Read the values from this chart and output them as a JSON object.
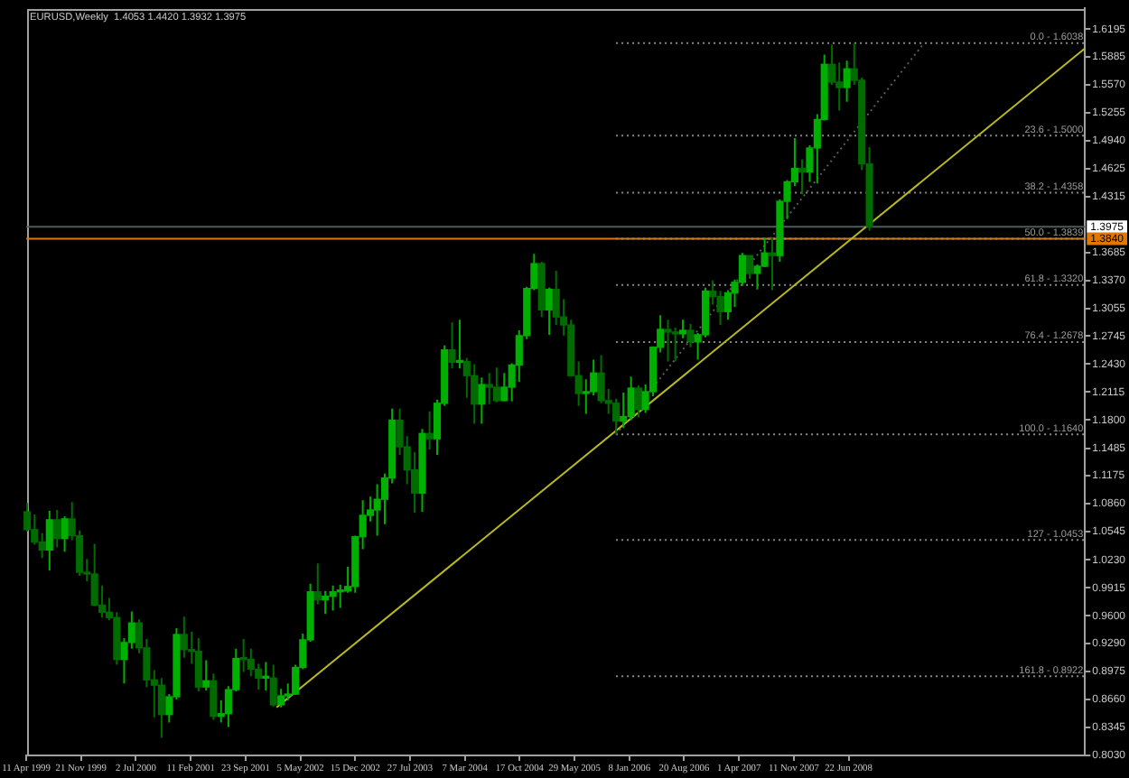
{
  "chart_data": {
    "type": "candlestick",
    "title": "EURUSD,Weekly  1.4053 1.4420 1.3932 1.3975",
    "x": [
      "1999-04-15",
      "1999-05-15",
      "1999-06-15",
      "1999-07-15",
      "1999-08-15",
      "1999-09-15",
      "1999-10-15",
      "1999-11-15",
      "1999-12-15",
      "2000-01-15",
      "2000-02-15",
      "2000-03-15",
      "2000-04-15",
      "2000-05-15",
      "2000-06-15",
      "2000-07-15",
      "2000-08-15",
      "2000-09-15",
      "2000-10-15",
      "2000-11-15",
      "2000-12-15",
      "2001-01-15",
      "2001-02-15",
      "2001-03-15",
      "2001-04-15",
      "2001-05-15",
      "2001-06-15",
      "2001-07-15",
      "2001-08-15",
      "2001-09-15",
      "2001-10-15",
      "2001-11-15",
      "2001-12-15",
      "2002-01-15",
      "2002-02-15",
      "2002-03-15",
      "2002-04-15",
      "2002-05-15",
      "2002-06-15",
      "2002-07-15",
      "2002-08-15",
      "2002-09-15",
      "2002-10-15",
      "2002-11-15",
      "2002-12-15",
      "2003-01-15",
      "2003-02-15",
      "2003-03-15",
      "2003-04-15",
      "2003-05-15",
      "2003-06-15",
      "2003-07-15",
      "2003-08-15",
      "2003-09-15",
      "2003-10-15",
      "2003-11-15",
      "2003-12-15",
      "2004-01-15",
      "2004-02-15",
      "2004-03-15",
      "2004-04-15",
      "2004-05-15",
      "2004-06-15",
      "2004-07-15",
      "2004-08-15",
      "2004-09-15",
      "2004-10-15",
      "2004-11-15",
      "2004-12-15",
      "2005-01-15",
      "2005-02-15",
      "2005-03-15",
      "2005-04-15",
      "2005-05-15",
      "2005-06-15",
      "2005-07-15",
      "2005-08-15",
      "2005-09-15",
      "2005-10-15",
      "2005-11-15",
      "2005-12-15",
      "2006-01-15",
      "2006-02-15",
      "2006-03-15",
      "2006-04-15",
      "2006-05-15",
      "2006-06-15",
      "2006-07-15",
      "2006-08-15",
      "2006-09-15",
      "2006-10-15",
      "2006-11-15",
      "2006-12-15",
      "2007-01-15",
      "2007-02-15",
      "2007-03-15",
      "2007-04-15",
      "2007-05-15",
      "2007-06-15",
      "2007-07-15",
      "2007-08-15",
      "2007-09-15",
      "2007-10-15",
      "2007-11-15",
      "2007-12-15",
      "2008-01-15",
      "2008-02-15",
      "2008-03-15",
      "2008-04-15",
      "2008-05-15",
      "2008-06-15",
      "2008-07-15",
      "2008-08-15",
      "2008-09-15"
    ],
    "ohlc": [
      [
        1.077,
        1.087,
        1.055,
        1.057
      ],
      [
        1.057,
        1.074,
        1.04,
        1.043
      ],
      [
        1.043,
        1.053,
        1.025,
        1.034
      ],
      [
        1.034,
        1.078,
        1.011,
        1.068
      ],
      [
        1.068,
        1.079,
        1.037,
        1.047
      ],
      [
        1.047,
        1.072,
        1.032,
        1.069
      ],
      [
        1.069,
        1.088,
        1.045,
        1.05
      ],
      [
        1.05,
        1.056,
        1.005,
        1.009
      ],
      [
        1.009,
        1.024,
        0.999,
        1.007
      ],
      [
        1.007,
        1.041,
        0.971,
        0.972
      ],
      [
        0.972,
        0.994,
        0.958,
        0.964
      ],
      [
        0.964,
        0.98,
        0.955,
        0.958
      ],
      [
        0.958,
        0.964,
        0.905,
        0.911
      ],
      [
        0.911,
        0.935,
        0.884,
        0.93
      ],
      [
        0.93,
        0.965,
        0.923,
        0.952
      ],
      [
        0.952,
        0.956,
        0.918,
        0.924
      ],
      [
        0.924,
        0.934,
        0.88,
        0.888
      ],
      [
        0.888,
        0.899,
        0.846,
        0.882
      ],
      [
        0.882,
        0.89,
        0.823,
        0.849
      ],
      [
        0.849,
        0.872,
        0.84,
        0.869
      ],
      [
        0.869,
        0.946,
        0.866,
        0.939
      ],
      [
        0.939,
        0.959,
        0.913,
        0.922
      ],
      [
        0.922,
        0.942,
        0.906,
        0.92
      ],
      [
        0.92,
        0.935,
        0.875,
        0.88
      ],
      [
        0.88,
        0.91,
        0.876,
        0.887
      ],
      [
        0.887,
        0.895,
        0.843,
        0.847
      ],
      [
        0.847,
        0.865,
        0.84,
        0.85
      ],
      [
        0.85,
        0.881,
        0.835,
        0.877
      ],
      [
        0.877,
        0.923,
        0.875,
        0.912
      ],
      [
        0.912,
        0.934,
        0.897,
        0.911
      ],
      [
        0.911,
        0.923,
        0.892,
        0.9
      ],
      [
        0.9,
        0.906,
        0.877,
        0.89
      ],
      [
        0.89,
        0.908,
        0.876,
        0.89
      ],
      [
        0.89,
        0.905,
        0.858,
        0.86
      ],
      [
        0.86,
        0.878,
        0.857,
        0.87
      ],
      [
        0.87,
        0.884,
        0.865,
        0.872
      ],
      [
        0.872,
        0.905,
        0.871,
        0.902
      ],
      [
        0.902,
        0.94,
        0.9,
        0.933
      ],
      [
        0.933,
        0.996,
        0.931,
        0.987
      ],
      [
        0.987,
        1.019,
        0.973,
        0.978
      ],
      [
        0.978,
        0.988,
        0.962,
        0.982
      ],
      [
        0.982,
        0.994,
        0.966,
        0.987
      ],
      [
        0.987,
        0.995,
        0.969,
        0.988
      ],
      [
        0.988,
        1.015,
        0.986,
        0.993
      ],
      [
        0.993,
        1.05,
        0.986,
        1.049
      ],
      [
        1.049,
        1.09,
        1.035,
        1.073
      ],
      [
        1.073,
        1.094,
        1.066,
        1.079
      ],
      [
        1.079,
        1.108,
        1.05,
        1.091
      ],
      [
        1.091,
        1.12,
        1.063,
        1.115
      ],
      [
        1.115,
        1.193,
        1.109,
        1.18
      ],
      [
        1.18,
        1.193,
        1.141,
        1.15
      ],
      [
        1.15,
        1.162,
        1.108,
        1.124
      ],
      [
        1.124,
        1.144,
        1.076,
        1.098
      ],
      [
        1.098,
        1.17,
        1.077,
        1.165
      ],
      [
        1.165,
        1.19,
        1.147,
        1.159
      ],
      [
        1.159,
        1.203,
        1.141,
        1.199
      ],
      [
        1.199,
        1.264,
        1.196,
        1.259
      ],
      [
        1.259,
        1.29,
        1.238,
        1.245
      ],
      [
        1.245,
        1.293,
        1.238,
        1.246
      ],
      [
        1.246,
        1.25,
        1.205,
        1.23
      ],
      [
        1.23,
        1.243,
        1.176,
        1.198
      ],
      [
        1.198,
        1.228,
        1.176,
        1.22
      ],
      [
        1.22,
        1.233,
        1.198,
        1.217
      ],
      [
        1.217,
        1.239,
        1.2,
        1.202
      ],
      [
        1.202,
        1.233,
        1.201,
        1.217
      ],
      [
        1.217,
        1.244,
        1.201,
        1.242
      ],
      [
        1.242,
        1.281,
        1.223,
        1.275
      ],
      [
        1.275,
        1.33,
        1.271,
        1.328
      ],
      [
        1.328,
        1.367,
        1.326,
        1.356
      ],
      [
        1.356,
        1.358,
        1.296,
        1.304
      ],
      [
        1.304,
        1.329,
        1.276,
        1.327
      ],
      [
        1.327,
        1.348,
        1.287,
        1.296
      ],
      [
        1.296,
        1.316,
        1.275,
        1.287
      ],
      [
        1.287,
        1.293,
        1.229,
        1.23
      ],
      [
        1.23,
        1.246,
        1.196,
        1.21
      ],
      [
        1.21,
        1.226,
        1.187,
        1.212
      ],
      [
        1.212,
        1.248,
        1.208,
        1.233
      ],
      [
        1.233,
        1.253,
        1.199,
        1.202
      ],
      [
        1.202,
        1.215,
        1.187,
        1.199
      ],
      [
        1.199,
        1.204,
        1.164,
        1.179
      ],
      [
        1.179,
        1.211,
        1.171,
        1.184
      ],
      [
        1.184,
        1.229,
        1.18,
        1.216
      ],
      [
        1.216,
        1.219,
        1.183,
        1.192
      ],
      [
        1.192,
        1.22,
        1.188,
        1.212
      ],
      [
        1.212,
        1.263,
        1.207,
        1.262
      ],
      [
        1.262,
        1.298,
        1.256,
        1.282
      ],
      [
        1.282,
        1.293,
        1.246,
        1.279
      ],
      [
        1.279,
        1.284,
        1.246,
        1.277
      ],
      [
        1.277,
        1.293,
        1.272,
        1.281
      ],
      [
        1.281,
        1.288,
        1.262,
        1.268
      ],
      [
        1.268,
        1.278,
        1.248,
        1.276
      ],
      [
        1.276,
        1.329,
        1.273,
        1.325
      ],
      [
        1.325,
        1.337,
        1.31,
        1.319
      ],
      [
        1.319,
        1.325,
        1.287,
        1.302
      ],
      [
        1.302,
        1.326,
        1.293,
        1.323
      ],
      [
        1.323,
        1.338,
        1.307,
        1.335
      ],
      [
        1.335,
        1.368,
        1.331,
        1.365
      ],
      [
        1.365,
        1.365,
        1.339,
        1.345
      ],
      [
        1.345,
        1.355,
        1.327,
        1.353
      ],
      [
        1.353,
        1.385,
        1.352,
        1.368
      ],
      [
        1.368,
        1.385,
        1.326,
        1.365
      ],
      [
        1.365,
        1.428,
        1.358,
        1.426
      ],
      [
        1.426,
        1.45,
        1.406,
        1.448
      ],
      [
        1.448,
        1.497,
        1.443,
        1.463
      ],
      [
        1.463,
        1.473,
        1.434,
        1.459
      ],
      [
        1.459,
        1.489,
        1.448,
        1.486
      ],
      [
        1.486,
        1.524,
        1.446,
        1.518
      ],
      [
        1.518,
        1.591,
        1.517,
        1.58
      ],
      [
        1.58,
        1.602,
        1.557,
        1.56
      ],
      [
        1.56,
        1.582,
        1.528,
        1.554
      ],
      [
        1.554,
        1.584,
        1.538,
        1.575
      ],
      [
        1.575,
        1.6038,
        1.557,
        1.562
      ],
      [
        1.562,
        1.565,
        1.461,
        1.468
      ],
      [
        1.468,
        1.487,
        1.393,
        1.3975
      ]
    ],
    "colors": [
      "#006c00",
      "#006c00",
      "#006c00",
      "#00b000",
      "#006c00",
      "#00b000",
      "#006c00",
      "#006c00",
      "#006c00",
      "#006c00",
      "#006c00",
      "#006c00",
      "#006c00",
      "#00b000",
      "#00b000",
      "#006c00",
      "#006c00",
      "#006c00",
      "#006c00",
      "#00b000",
      "#00b000",
      "#006c00",
      "#006c00",
      "#006c00",
      "#00b000",
      "#006c00",
      "#00b000",
      "#00b000",
      "#00b000",
      "#006c00",
      "#006c00",
      "#006c00",
      "#00b000",
      "#006c00",
      "#00b000",
      "#00b000",
      "#00b000",
      "#00b000",
      "#00b000",
      "#006c00",
      "#00b000",
      "#00b000",
      "#00b000",
      "#00b000",
      "#00b000",
      "#00b000",
      "#00b000",
      "#00b000",
      "#00b000",
      "#00b000",
      "#006c00",
      "#006c00",
      "#006c00",
      "#00b000",
      "#006c00",
      "#00b000",
      "#00b000",
      "#006c00",
      "#00b000",
      "#006c00",
      "#006c00",
      "#00b000",
      "#006c00",
      "#006c00",
      "#00b000",
      "#00b000",
      "#00b000",
      "#00b000",
      "#00b000",
      "#006c00",
      "#00b000",
      "#006c00",
      "#006c00",
      "#006c00",
      "#006c00",
      "#00b000",
      "#00b000",
      "#006c00",
      "#006c00",
      "#006c00",
      "#00b000",
      "#00b000",
      "#006c00",
      "#00b000",
      "#00b000",
      "#00b000",
      "#006c00",
      "#006c00",
      "#00b000",
      "#006c00",
      "#00b000",
      "#00b000",
      "#006c00",
      "#006c00",
      "#00b000",
      "#00b000",
      "#00b000",
      "#006c00",
      "#00b000",
      "#00b000",
      "#006c00",
      "#00b000",
      "#00b000",
      "#00b000",
      "#006c00",
      "#00b000",
      "#00b000",
      "#00b000",
      "#006c00",
      "#006c00",
      "#00b000",
      "#006c00",
      "#006c00",
      "#006c00"
    ],
    "series": [
      {
        "type": "line",
        "x": [
          "2002-01-28",
          "2011-02-13"
        ],
        "values": [
          0.857,
          1.598
        ],
        "color": "#b8b820"
      },
      {
        "type": "line",
        "x": [
          "2005-11-15",
          "2009-04-26"
        ],
        "values": [
          1.164,
          1.6038
        ],
        "color": "#5a5a5a",
        "line_style": "dotted"
      },
      {
        "type": "line",
        "x": [
          "2005-11-15",
          "2011-02-13"
        ],
        "values": [
          1.6038,
          1.6038
        ],
        "color": "#8a8a8a",
        "line_style": "dotted"
      },
      {
        "type": "line",
        "x": [
          "2005-11-15",
          "2011-02-13"
        ],
        "values": [
          1.5,
          1.5
        ],
        "color": "#8a8a8a",
        "line_style": "dotted"
      },
      {
        "type": "line",
        "x": [
          "2005-11-15",
          "2011-02-13"
        ],
        "values": [
          1.4358,
          1.4358
        ],
        "color": "#8a8a8a",
        "line_style": "dotted"
      },
      {
        "type": "line",
        "x": [
          "2005-11-15",
          "2011-02-13"
        ],
        "values": [
          1.3839,
          1.3839
        ],
        "color": "#8a8a8a",
        "line_style": "dotted"
      },
      {
        "type": "line",
        "x": [
          "2005-11-15",
          "2011-02-13"
        ],
        "values": [
          1.332,
          1.332
        ],
        "color": "#8a8a8a",
        "line_style": "dotted"
      },
      {
        "type": "line",
        "x": [
          "2005-11-15",
          "2011-02-13"
        ],
        "values": [
          1.2678,
          1.2678
        ],
        "color": "#8a8a8a",
        "line_style": "dotted"
      },
      {
        "type": "line",
        "x": [
          "2005-11-15",
          "2011-02-13"
        ],
        "values": [
          1.164,
          1.164
        ],
        "color": "#8a8a8a",
        "line_style": "dotted"
      },
      {
        "type": "line",
        "x": [
          "2005-11-15",
          "2011-02-13"
        ],
        "values": [
          1.0453,
          1.0453
        ],
        "color": "#8a8a8a",
        "line_style": "dotted"
      },
      {
        "type": "line",
        "x": [
          "2005-11-15",
          "2011-02-13"
        ],
        "values": [
          0.8922,
          0.8922
        ],
        "color": "#8a8a8a",
        "line_style": "dotted"
      }
    ],
    "annotations": [
      {
        "text": "0.0 - 1.6038",
        "x": "2011-02-13",
        "y": 1.6038
      },
      {
        "text": "23.6 - 1.5000",
        "x": "2011-02-13",
        "y": 1.5
      },
      {
        "text": "38.2 - 1.4358",
        "x": "2011-02-13",
        "y": 1.4358
      },
      {
        "text": "50.0 - 1.3839",
        "x": "2011-02-13",
        "y": 1.3839
      },
      {
        "text": "61.8 - 1.3320",
        "x": "2011-02-13",
        "y": 1.332
      },
      {
        "text": "76.4 - 1.2678",
        "x": "2011-02-13",
        "y": 1.2678
      },
      {
        "text": "100.0 - 1.1640",
        "x": "2011-02-13",
        "y": 1.164
      },
      {
        "text": "127 - 1.0453",
        "x": "2011-02-13",
        "y": 1.0453
      },
      {
        "text": "161.8 - 0.8922",
        "x": "2011-02-13",
        "y": 0.8922
      }
    ],
    "ref_lines": [
      {
        "axis": "y",
        "value": 1.3975,
        "label": "1.3975",
        "color": "#4d5b5b"
      },
      {
        "axis": "y",
        "value": 1.384,
        "label": "1.3840",
        "color": "#e07800"
      }
    ],
    "xlim": [
      "1999-04-11",
      "2011-02-13"
    ],
    "xticks": [
      {
        "value": "1999-04-11",
        "label": "11 Apr 1999"
      },
      {
        "value": "1999-11-21",
        "label": "21 Nov 1999"
      },
      {
        "value": "2000-07-02",
        "label": "2 Jul 2000"
      },
      {
        "value": "2001-02-11",
        "label": "11 Feb 2001"
      },
      {
        "value": "2001-09-23",
        "label": "23 Sep 2001"
      },
      {
        "value": "2002-05-05",
        "label": "5 May 2002"
      },
      {
        "value": "2002-12-15",
        "label": "15 Dec 2002"
      },
      {
        "value": "2003-07-27",
        "label": "27 Jul 2003"
      },
      {
        "value": "2004-03-07",
        "label": "7 Mar 2004"
      },
      {
        "value": "2004-10-17",
        "label": "17 Oct 2004"
      },
      {
        "value": "2005-05-29",
        "label": "29 May 2005"
      },
      {
        "value": "2006-01-08",
        "label": "8 Jan 2006"
      },
      {
        "value": "2006-08-20",
        "label": "20 Aug 2006"
      },
      {
        "value": "2007-04-01",
        "label": "1 Apr 2007"
      },
      {
        "value": "2007-11-11",
        "label": "11 Nov 2007"
      },
      {
        "value": "2008-06-22",
        "label": "22 Jun 2008"
      }
    ],
    "ylim": [
      0.803,
      1.643
    ],
    "yticks": [
      1.6195,
      1.5885,
      {
        "value": 1.557,
        "label": "1.5570"
      },
      1.5255,
      {
        "value": 1.494,
        "label": "1.4940"
      },
      1.4625,
      1.4315,
      1.3685,
      {
        "value": 1.337,
        "label": "1.3370"
      },
      1.3055,
      1.2745,
      {
        "value": 1.243,
        "label": "1.2430"
      },
      1.2115,
      {
        "value": 1.18,
        "label": "1.1800"
      },
      1.1485,
      1.1175,
      {
        "value": 1.086,
        "label": "1.0860"
      },
      1.0545,
      {
        "value": 1.023,
        "label": "1.0230"
      },
      0.9915,
      {
        "value": 0.96,
        "label": "0.9600"
      },
      {
        "value": 0.929,
        "label": "0.9290"
      },
      0.8975,
      {
        "value": 0.866,
        "label": "0.8660"
      },
      0.8345,
      {
        "value": 0.803,
        "label": "0.8030"
      }
    ]
  }
}
